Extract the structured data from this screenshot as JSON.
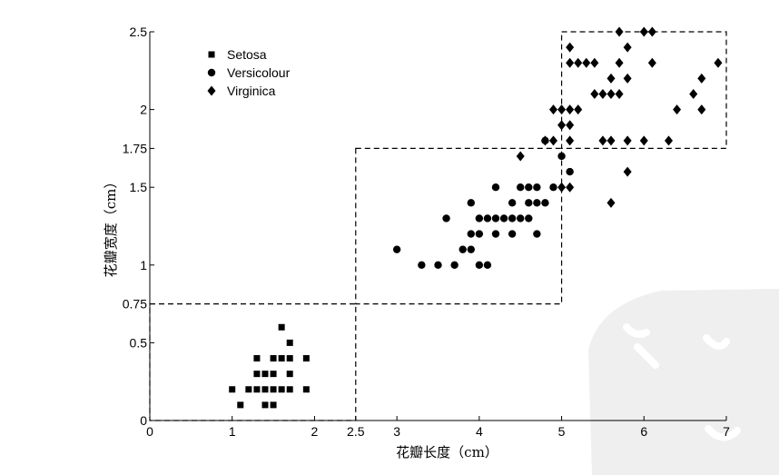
{
  "chart_data": {
    "type": "scatter",
    "xlabel": "花瓣长度（cm）",
    "ylabel": "花瓣宽度（cm）",
    "xlim": [
      0,
      7
    ],
    "ylim": [
      0,
      2.5
    ],
    "x_ticks": [
      "0",
      "1",
      "2",
      "2.5",
      "3",
      "4",
      "5",
      "6",
      "7"
    ],
    "x_tick_values": [
      0,
      1,
      2,
      2.5,
      3,
      4,
      5,
      6,
      7
    ],
    "y_ticks": [
      "0",
      "0.5",
      "0.75",
      "1",
      "1.5",
      "1.75",
      "2",
      "2.5"
    ],
    "y_tick_values": [
      0,
      0.5,
      0.75,
      1,
      1.5,
      1.75,
      2,
      2.5
    ],
    "legend_position": "top-left",
    "decision_regions": [
      {
        "x": [
          0,
          2.5
        ],
        "y": [
          0,
          0.75
        ]
      },
      {
        "x": [
          2.5,
          5
        ],
        "y": [
          0.75,
          1.75
        ]
      },
      {
        "x": [
          5,
          7
        ],
        "y": [
          1.75,
          2.5
        ]
      }
    ],
    "series": [
      {
        "name": "Setosa",
        "marker": "square",
        "points": [
          [
            1.0,
            0.2
          ],
          [
            1.1,
            0.1
          ],
          [
            1.2,
            0.2
          ],
          [
            1.3,
            0.2
          ],
          [
            1.3,
            0.3
          ],
          [
            1.3,
            0.4
          ],
          [
            1.4,
            0.1
          ],
          [
            1.4,
            0.2
          ],
          [
            1.4,
            0.3
          ],
          [
            1.5,
            0.1
          ],
          [
            1.5,
            0.2
          ],
          [
            1.5,
            0.3
          ],
          [
            1.5,
            0.4
          ],
          [
            1.6,
            0.2
          ],
          [
            1.6,
            0.4
          ],
          [
            1.6,
            0.6
          ],
          [
            1.7,
            0.2
          ],
          [
            1.7,
            0.3
          ],
          [
            1.7,
            0.4
          ],
          [
            1.7,
            0.5
          ],
          [
            1.9,
            0.2
          ],
          [
            1.9,
            0.4
          ]
        ]
      },
      {
        "name": "Versicolour",
        "marker": "circle",
        "points": [
          [
            3.0,
            1.1
          ],
          [
            3.3,
            1.0
          ],
          [
            3.5,
            1.0
          ],
          [
            3.6,
            1.3
          ],
          [
            3.7,
            1.0
          ],
          [
            3.8,
            1.1
          ],
          [
            3.9,
            1.1
          ],
          [
            3.9,
            1.2
          ],
          [
            3.9,
            1.4
          ],
          [
            4.0,
            1.0
          ],
          [
            4.0,
            1.2
          ],
          [
            4.0,
            1.3
          ],
          [
            4.1,
            1.0
          ],
          [
            4.1,
            1.3
          ],
          [
            4.2,
            1.2
          ],
          [
            4.2,
            1.3
          ],
          [
            4.2,
            1.5
          ],
          [
            4.3,
            1.3
          ],
          [
            4.4,
            1.2
          ],
          [
            4.4,
            1.3
          ],
          [
            4.4,
            1.4
          ],
          [
            4.5,
            1.3
          ],
          [
            4.5,
            1.5
          ],
          [
            4.6,
            1.3
          ],
          [
            4.6,
            1.4
          ],
          [
            4.6,
            1.5
          ],
          [
            4.7,
            1.2
          ],
          [
            4.7,
            1.4
          ],
          [
            4.7,
            1.5
          ],
          [
            4.8,
            1.4
          ],
          [
            4.8,
            1.8
          ],
          [
            4.9,
            1.5
          ],
          [
            5.0,
            1.7
          ],
          [
            5.1,
            1.6
          ]
        ]
      },
      {
        "name": "Virginica",
        "marker": "diamond",
        "points": [
          [
            4.5,
            1.7
          ],
          [
            4.8,
            1.8
          ],
          [
            4.9,
            1.8
          ],
          [
            4.9,
            2.0
          ],
          [
            5.0,
            1.5
          ],
          [
            5.0,
            1.9
          ],
          [
            5.0,
            2.0
          ],
          [
            5.1,
            1.5
          ],
          [
            5.1,
            1.8
          ],
          [
            5.1,
            1.9
          ],
          [
            5.1,
            2.0
          ],
          [
            5.1,
            2.3
          ],
          [
            5.1,
            2.4
          ],
          [
            5.2,
            2.0
          ],
          [
            5.2,
            2.3
          ],
          [
            5.3,
            2.3
          ],
          [
            5.4,
            2.1
          ],
          [
            5.4,
            2.3
          ],
          [
            5.5,
            1.8
          ],
          [
            5.5,
            2.1
          ],
          [
            5.6,
            1.4
          ],
          [
            5.6,
            1.8
          ],
          [
            5.6,
            2.1
          ],
          [
            5.6,
            2.2
          ],
          [
            5.7,
            2.1
          ],
          [
            5.7,
            2.3
          ],
          [
            5.7,
            2.5
          ],
          [
            5.8,
            1.6
          ],
          [
            5.8,
            1.8
          ],
          [
            5.8,
            2.2
          ],
          [
            5.8,
            2.4
          ],
          [
            6.0,
            1.8
          ],
          [
            6.0,
            2.5
          ],
          [
            6.1,
            2.3
          ],
          [
            6.1,
            2.5
          ],
          [
            6.3,
            1.8
          ],
          [
            6.4,
            2.0
          ],
          [
            6.6,
            2.1
          ],
          [
            6.7,
            2.0
          ],
          [
            6.7,
            2.2
          ],
          [
            6.9,
            2.3
          ]
        ]
      }
    ]
  }
}
